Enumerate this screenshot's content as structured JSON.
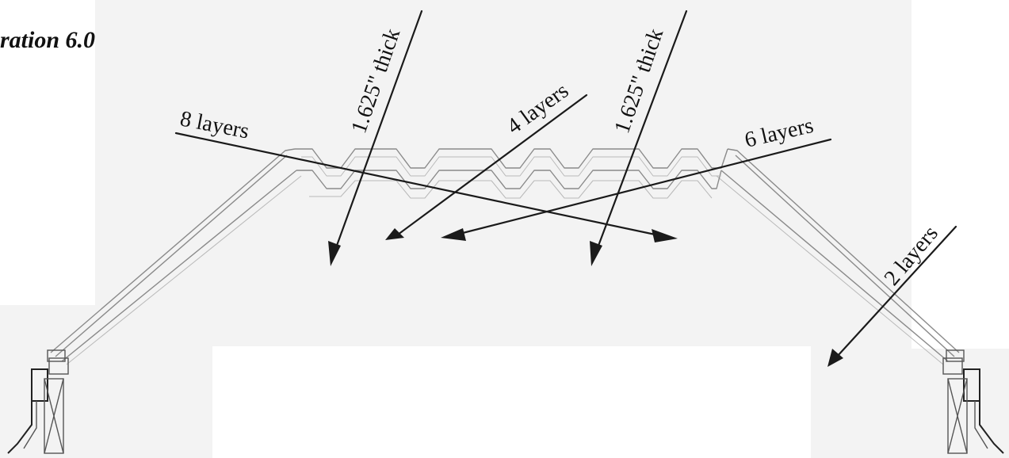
{
  "title": "ration 6.0",
  "labels": {
    "layers_8": "8 layers",
    "thick_left": "1.625\" thick",
    "layers_4": "4 layers",
    "thick_right": "1.625\" thick",
    "layers_6": "6 layers",
    "layers_2": "2 layers"
  }
}
